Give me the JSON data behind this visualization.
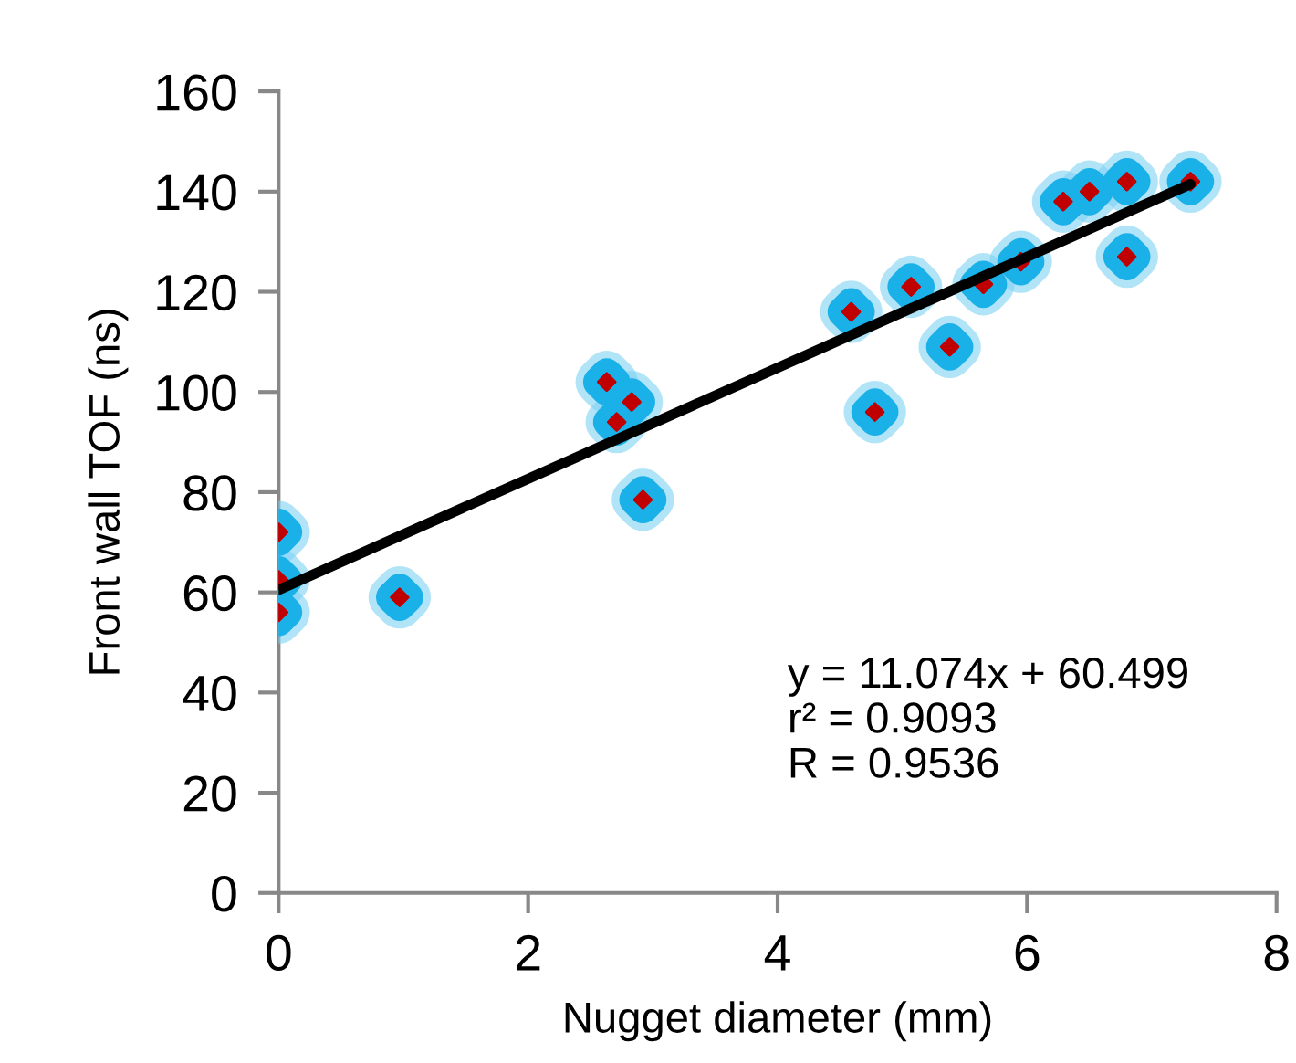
{
  "chart_data": {
    "type": "scatter",
    "xlabel": "Nugget diameter (mm)",
    "ylabel": "Front wall TOF (ns)",
    "xlim": [
      0,
      8
    ],
    "xticks": [
      0,
      2,
      4,
      6,
      8
    ],
    "ylim": [
      0,
      160
    ],
    "yticks": [
      0,
      20,
      40,
      60,
      80,
      100,
      120,
      140,
      160
    ],
    "grid": false,
    "legend": false,
    "marker": "diamond",
    "series": [
      {
        "color": "#c00000",
        "x": [
          0,
          0,
          0,
          0.97,
          2.63,
          2.83,
          2.71,
          2.92,
          4.59,
          4.78,
          5.07,
          5.38,
          5.65,
          5.95,
          6.29,
          6.5,
          6.8,
          6.8,
          7.31
        ],
        "values": [
          72,
          62.5,
          56,
          59,
          102,
          98,
          94,
          78.5,
          116,
          96,
          121,
          109,
          121.5,
          126,
          138,
          140,
          142,
          127,
          142
        ]
      },
      {
        "type": "line",
        "color": "#000000",
        "x": [
          0,
          7.31
        ],
        "values": [
          60.5,
          141.5
        ],
        "line_style": "solid"
      }
    ],
    "annotations": [
      "y = 11.074x + 60.499",
      "r² = 0.9093",
      "R = 0.9536"
    ]
  }
}
